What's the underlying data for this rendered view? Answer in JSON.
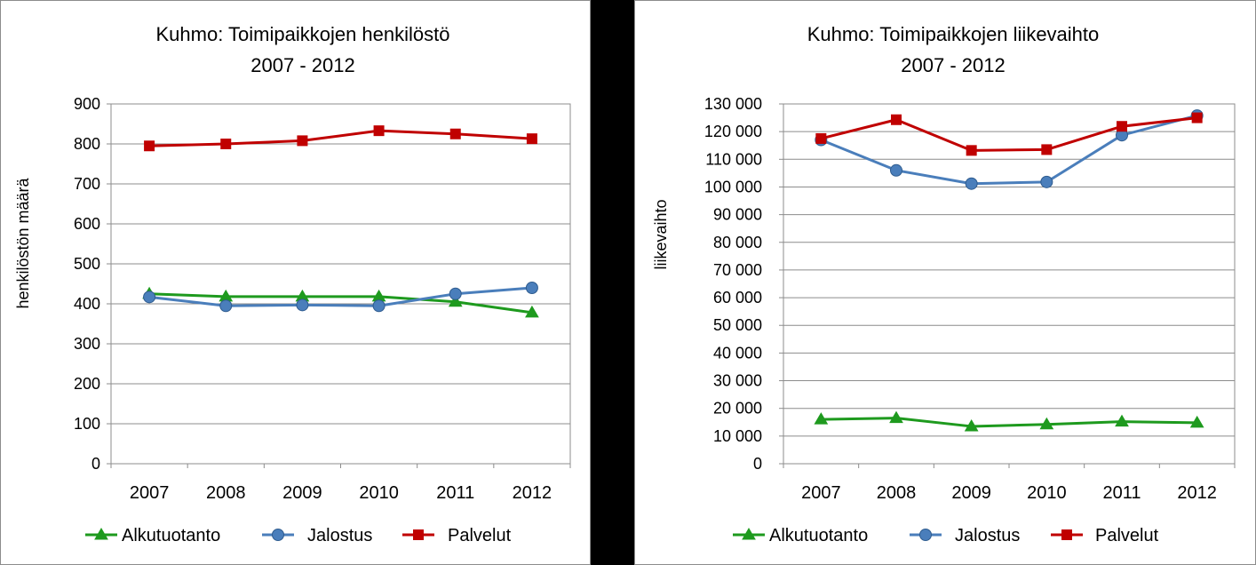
{
  "chart_data": [
    {
      "type": "line",
      "title": "Kuhmo: Toimipaikkojen henkilöstö",
      "subtitle": "2007 - 2012",
      "xlabel": "",
      "ylabel": "henkilöstön määrä",
      "categories": [
        "2007",
        "2008",
        "2009",
        "2010",
        "2011",
        "2012"
      ],
      "ylim": [
        0,
        900
      ],
      "ytick_step": 100,
      "y_tick_labels": [
        "0",
        "100",
        "200",
        "300",
        "400",
        "500",
        "600",
        "700",
        "800",
        "900"
      ],
      "grid": true,
      "legend_position": "bottom",
      "series": [
        {
          "name": "Alkutuotanto",
          "color": "#1E9A1E",
          "marker": "triangle",
          "values": [
            425,
            418,
            418,
            418,
            405,
            378
          ]
        },
        {
          "name": "Jalostus",
          "color": "#4A7EBB",
          "marker": "circle",
          "values": [
            417,
            395,
            397,
            395,
            425,
            440
          ]
        },
        {
          "name": "Palvelut",
          "color": "#C00000",
          "marker": "square",
          "values": [
            795,
            800,
            808,
            833,
            825,
            813
          ]
        }
      ]
    },
    {
      "type": "line",
      "title": "Kuhmo: Toimipaikkojen liikevaihto",
      "subtitle": "2007 - 2012",
      "xlabel": "",
      "ylabel": "liikevaihto",
      "categories": [
        "2007",
        "2008",
        "2009",
        "2010",
        "2011",
        "2012"
      ],
      "ylim": [
        0,
        130000
      ],
      "ytick_step": 10000,
      "y_tick_labels": [
        "0",
        "10 000",
        "20 000",
        "30 000",
        "40 000",
        "50 000",
        "60 000",
        "70 000",
        "80 000",
        "90 000",
        "100 000",
        "110 000",
        "120 000",
        "130 000"
      ],
      "grid": true,
      "legend_position": "bottom",
      "series": [
        {
          "name": "Alkutuotanto",
          "color": "#1E9A1E",
          "marker": "triangle",
          "values": [
            16000,
            16500,
            13500,
            14200,
            15200,
            14800
          ]
        },
        {
          "name": "Jalostus",
          "color": "#4A7EBB",
          "marker": "circle",
          "values": [
            117000,
            106000,
            101200,
            101800,
            118700,
            125800
          ]
        },
        {
          "name": "Palvelut",
          "color": "#C00000",
          "marker": "square",
          "values": [
            117500,
            124300,
            113200,
            113500,
            121900,
            125000
          ]
        }
      ]
    }
  ]
}
